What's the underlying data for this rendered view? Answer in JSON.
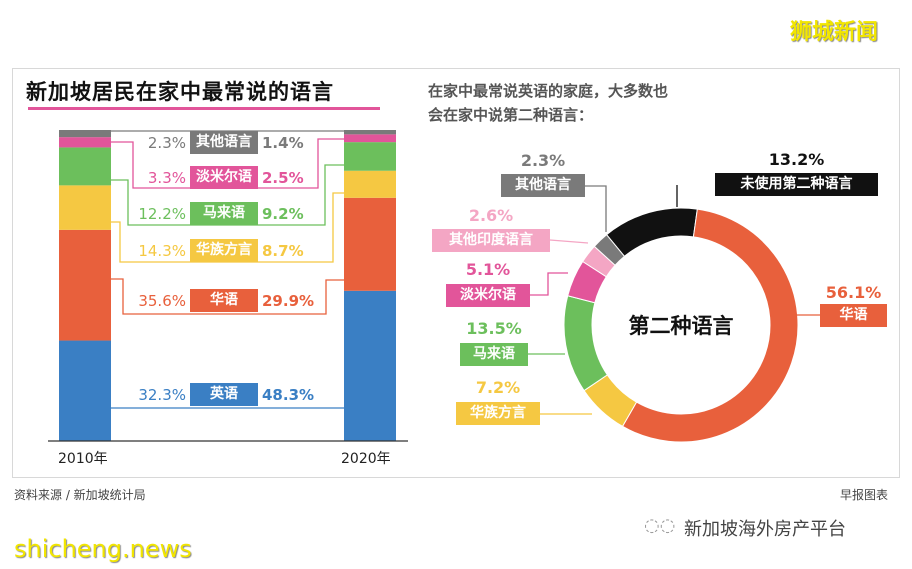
{
  "watermarks": {
    "top": "狮城新闻",
    "bottom": "shicheng.news",
    "wechat": "新加坡海外房产平台"
  },
  "footer": {
    "source": "资料来源 / 新加坡统计局",
    "credit": "早报图表"
  },
  "chart_data": [
    {
      "type": "bar",
      "stacked": true,
      "title": "新加坡居民在家中最常说的语言",
      "categories": [
        "2010年",
        "2020年"
      ],
      "series": [
        {
          "name": "英语",
          "values": [
            32.3,
            48.3
          ],
          "color": "#3a7fc4"
        },
        {
          "name": "华语",
          "values": [
            35.6,
            29.9
          ],
          "color": "#e8603c"
        },
        {
          "name": "华族方言",
          "values": [
            14.3,
            8.7
          ],
          "color": "#f5c842"
        },
        {
          "name": "马来语",
          "values": [
            12.2,
            9.2
          ],
          "color": "#6cbf5c"
        },
        {
          "name": "淡米尔语",
          "values": [
            3.3,
            2.5
          ],
          "color": "#e2559a"
        },
        {
          "name": "其他语言",
          "values": [
            2.3,
            1.4
          ],
          "color": "#7a7a7a"
        }
      ],
      "value_labels": [
        [
          "32.3%",
          "48.3%"
        ],
        [
          "35.6%",
          "29.9%"
        ],
        [
          "14.3%",
          "8.7%"
        ],
        [
          "12.2%",
          "9.2%"
        ],
        [
          "3.3%",
          "2.5%"
        ],
        [
          "2.3%",
          "1.4%"
        ]
      ],
      "ylim": [
        0,
        100
      ]
    },
    {
      "type": "pie",
      "donut": true,
      "title": "在家中最常说英语的家庭，大多数也会在家中说第二种语言：",
      "title_lines": [
        "在家中最常说英语的家庭，大多数也",
        "会在家中说第二种语言："
      ],
      "center_label": "第二种语言",
      "slices": [
        {
          "name": "未使用第二种语言",
          "value": 13.2,
          "label": "13.2%",
          "color": "#111111"
        },
        {
          "name": "华语",
          "value": 56.1,
          "label": "56.1%",
          "color": "#e8603c"
        },
        {
          "name": "华族方言",
          "value": 7.2,
          "label": "7.2%",
          "color": "#f5c842"
        },
        {
          "name": "马来语",
          "value": 13.5,
          "label": "13.5%",
          "color": "#6cbf5c"
        },
        {
          "name": "淡米尔语",
          "value": 5.1,
          "label": "5.1%",
          "color": "#e2559a"
        },
        {
          "name": "其他印度语言",
          "value": 2.6,
          "label": "2.6%",
          "color": "#f4a6c4"
        },
        {
          "name": "其他语言",
          "value": 2.3,
          "label": "2.3%",
          "color": "#7a7a7a"
        }
      ]
    }
  ]
}
